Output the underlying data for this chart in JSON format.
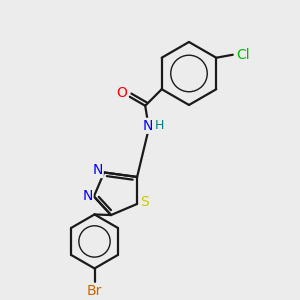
{
  "background_color": "#ececec",
  "bond_color": "#1a1a1a",
  "atom_colors": {
    "O": "#ff0000",
    "N": "#0000ff",
    "H": "#008080",
    "S": "#cccc00",
    "Cl": "#00bb00",
    "Br": "#cc6600"
  },
  "font_size": 10,
  "lw": 1.6
}
